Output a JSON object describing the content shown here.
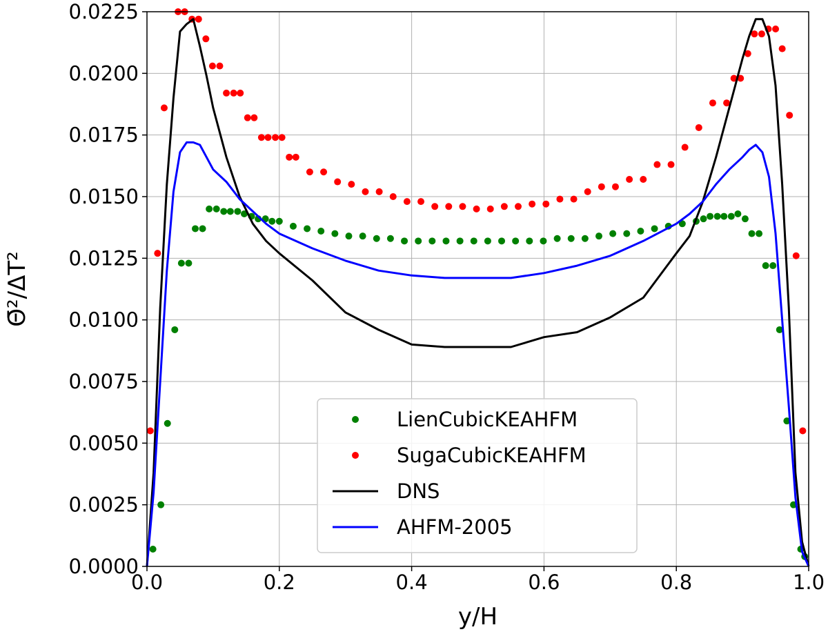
{
  "chart_data": {
    "type": "line",
    "xlabel": "y/H",
    "ylabel": "Θ̄²/ΔT²",
    "xlim": [
      0.0,
      1.0
    ],
    "ylim": [
      0.0,
      0.0225
    ],
    "x_ticks": [
      "0.0",
      "0.2",
      "0.4",
      "0.6",
      "0.8",
      "1.0"
    ],
    "x_tick_values": [
      0.0,
      0.2,
      0.4,
      0.6,
      0.8,
      1.0
    ],
    "y_ticks": [
      "0.0000",
      "0.0025",
      "0.0050",
      "0.0075",
      "0.0100",
      "0.0125",
      "0.0150",
      "0.0175",
      "0.0200",
      "0.0225"
    ],
    "y_tick_values": [
      0.0,
      0.0025,
      0.005,
      0.0075,
      0.01,
      0.0125,
      0.015,
      0.0175,
      0.02,
      0.0225
    ],
    "grid": true,
    "legend_position": "bottom-center",
    "series": [
      {
        "name": "LienCubicKEAHFM",
        "style": "markers",
        "color": "#008000",
        "x": [
          0.009,
          0.021,
          0.031,
          0.042,
          0.052,
          0.063,
          0.073,
          0.084,
          0.094,
          0.105,
          0.116,
          0.126,
          0.137,
          0.147,
          0.158,
          0.168,
          0.179,
          0.189,
          0.2,
          0.221,
          0.242,
          0.263,
          0.284,
          0.305,
          0.326,
          0.347,
          0.368,
          0.389,
          0.41,
          0.431,
          0.452,
          0.473,
          0.494,
          0.515,
          0.536,
          0.557,
          0.578,
          0.599,
          0.62,
          0.641,
          0.662,
          0.683,
          0.704,
          0.725,
          0.746,
          0.767,
          0.788,
          0.809,
          0.83,
          0.841,
          0.851,
          0.862,
          0.872,
          0.883,
          0.893,
          0.904,
          0.914,
          0.925,
          0.935,
          0.946,
          0.956,
          0.967,
          0.977,
          0.988,
          0.994
        ],
        "y": [
          0.0007,
          0.0025,
          0.0058,
          0.0096,
          0.0123,
          0.0123,
          0.0137,
          0.0137,
          0.0145,
          0.0145,
          0.0144,
          0.0144,
          0.0144,
          0.0143,
          0.0142,
          0.0141,
          0.0141,
          0.014,
          0.014,
          0.0138,
          0.0137,
          0.0136,
          0.0135,
          0.0134,
          0.0134,
          0.0133,
          0.0133,
          0.0132,
          0.0132,
          0.0132,
          0.0132,
          0.0132,
          0.0132,
          0.0132,
          0.0132,
          0.0132,
          0.0132,
          0.0132,
          0.0133,
          0.0133,
          0.0133,
          0.0134,
          0.0135,
          0.0135,
          0.0136,
          0.0137,
          0.0138,
          0.0139,
          0.014,
          0.0141,
          0.0142,
          0.0142,
          0.0142,
          0.0142,
          0.0143,
          0.0141,
          0.0135,
          0.0135,
          0.0122,
          0.0122,
          0.0096,
          0.0059,
          0.0025,
          0.0007,
          0.0004
        ]
      },
      {
        "name": "SugaCubicKEAHFM",
        "style": "markers",
        "color": "#ff0000",
        "x": [
          0.005,
          0.016,
          0.026,
          0.047,
          0.057,
          0.068,
          0.078,
          0.089,
          0.099,
          0.11,
          0.12,
          0.131,
          0.141,
          0.152,
          0.162,
          0.173,
          0.183,
          0.194,
          0.204,
          0.215,
          0.225,
          0.246,
          0.267,
          0.288,
          0.309,
          0.33,
          0.351,
          0.372,
          0.393,
          0.414,
          0.435,
          0.456,
          0.477,
          0.498,
          0.519,
          0.54,
          0.561,
          0.582,
          0.603,
          0.624,
          0.645,
          0.666,
          0.687,
          0.708,
          0.729,
          0.75,
          0.771,
          0.792,
          0.813,
          0.834,
          0.855,
          0.876,
          0.887,
          0.897,
          0.908,
          0.918,
          0.929,
          0.939,
          0.95,
          0.96,
          0.971,
          0.981,
          0.991
        ],
        "y": [
          0.0055,
          0.0127,
          0.0186,
          0.0225,
          0.0225,
          0.0222,
          0.0222,
          0.0214,
          0.0203,
          0.0203,
          0.0192,
          0.0192,
          0.0192,
          0.0182,
          0.0182,
          0.0174,
          0.0174,
          0.0174,
          0.0174,
          0.0166,
          0.0166,
          0.016,
          0.016,
          0.0156,
          0.0155,
          0.0152,
          0.0152,
          0.015,
          0.0148,
          0.0148,
          0.0146,
          0.0146,
          0.0146,
          0.0145,
          0.0145,
          0.0146,
          0.0146,
          0.0147,
          0.0147,
          0.0149,
          0.0149,
          0.0152,
          0.0154,
          0.0154,
          0.0157,
          0.0157,
          0.0163,
          0.0163,
          0.017,
          0.0178,
          0.0188,
          0.0188,
          0.0198,
          0.0198,
          0.0208,
          0.0216,
          0.0216,
          0.0218,
          0.0218,
          0.021,
          0.0183,
          0.0126,
          0.0055
        ]
      },
      {
        "name": "DNS",
        "style": "line",
        "color": "#000000",
        "x": [
          0.0,
          0.01,
          0.02,
          0.03,
          0.04,
          0.05,
          0.06,
          0.07,
          0.08,
          0.09,
          0.1,
          0.12,
          0.14,
          0.16,
          0.18,
          0.2,
          0.25,
          0.3,
          0.35,
          0.4,
          0.45,
          0.5,
          0.55,
          0.6,
          0.65,
          0.7,
          0.75,
          0.8,
          0.82,
          0.84,
          0.86,
          0.88,
          0.9,
          0.91,
          0.92,
          0.93,
          0.94,
          0.95,
          0.96,
          0.97,
          0.98,
          0.99,
          1.0
        ],
        "y": [
          0.0,
          0.0038,
          0.0105,
          0.0155,
          0.019,
          0.0217,
          0.022,
          0.0222,
          0.0211,
          0.0199,
          0.0186,
          0.0166,
          0.015,
          0.0139,
          0.0132,
          0.0127,
          0.0116,
          0.0103,
          0.0096,
          0.009,
          0.0089,
          0.0089,
          0.0089,
          0.0093,
          0.0095,
          0.0101,
          0.0109,
          0.0127,
          0.0134,
          0.0148,
          0.0166,
          0.0186,
          0.0206,
          0.0215,
          0.0222,
          0.0222,
          0.0215,
          0.0195,
          0.0155,
          0.0105,
          0.0038,
          0.001,
          0.0
        ]
      },
      {
        "name": "AHFM-2005",
        "style": "line",
        "color": "#0000ff",
        "x": [
          0.0,
          0.01,
          0.02,
          0.03,
          0.04,
          0.05,
          0.06,
          0.07,
          0.08,
          0.09,
          0.1,
          0.12,
          0.14,
          0.16,
          0.18,
          0.2,
          0.25,
          0.3,
          0.35,
          0.4,
          0.45,
          0.5,
          0.55,
          0.6,
          0.65,
          0.7,
          0.75,
          0.8,
          0.82,
          0.84,
          0.86,
          0.88,
          0.9,
          0.91,
          0.92,
          0.93,
          0.94,
          0.95,
          0.96,
          0.97,
          0.98,
          0.99,
          1.0
        ],
        "y": [
          0.0,
          0.003,
          0.0075,
          0.012,
          0.0152,
          0.0168,
          0.0172,
          0.0172,
          0.0171,
          0.0166,
          0.0161,
          0.0156,
          0.0149,
          0.0144,
          0.0139,
          0.0135,
          0.0129,
          0.0124,
          0.012,
          0.0118,
          0.0117,
          0.0117,
          0.0117,
          0.0119,
          0.0122,
          0.0126,
          0.0132,
          0.0139,
          0.0143,
          0.0148,
          0.0155,
          0.0161,
          0.0166,
          0.0169,
          0.0171,
          0.0168,
          0.0158,
          0.0135,
          0.01,
          0.0065,
          0.0028,
          0.0006,
          0.0
        ]
      }
    ]
  }
}
